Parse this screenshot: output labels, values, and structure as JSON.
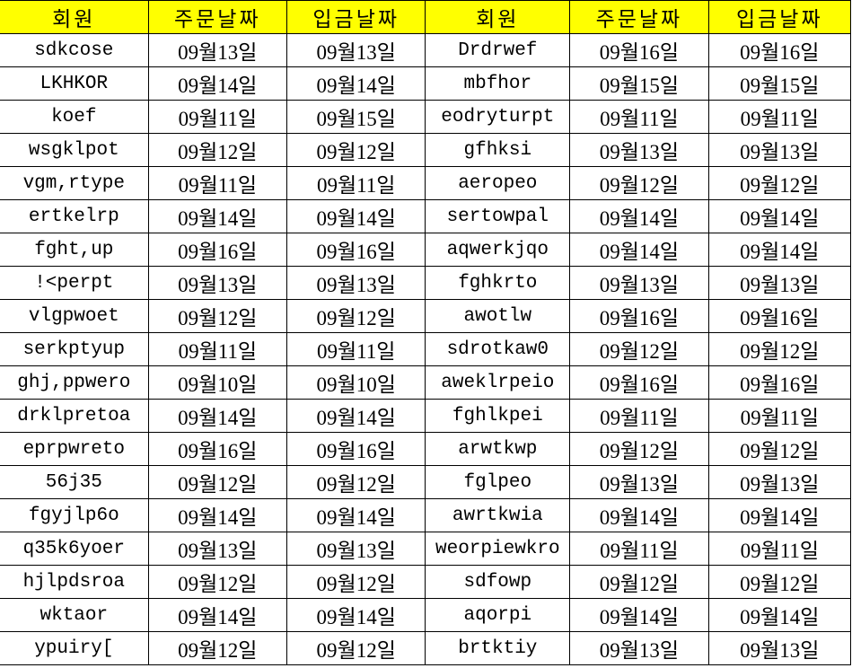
{
  "colors": {
    "header_bg": "#ffff00",
    "grid": "#000000"
  },
  "headers": [
    "회원",
    "주문날짜",
    "입금날짜",
    "회원",
    "주문날짜",
    "입금날짜"
  ],
  "rows": [
    [
      "sdkcose",
      "09월13일",
      "09월13일",
      "Drdrwef",
      "09월16일",
      "09월16일"
    ],
    [
      "LKHKOR",
      "09월14일",
      "09월14일",
      "mbfhor",
      "09월15일",
      "09월15일"
    ],
    [
      "koef",
      "09월11일",
      "09월15일",
      "eodryturpt",
      "09월11일",
      "09월11일"
    ],
    [
      "wsgklpot",
      "09월12일",
      "09월12일",
      "gfhksi",
      "09월13일",
      "09월13일"
    ],
    [
      "vgm,rtype",
      "09월11일",
      "09월11일",
      "aeropeo",
      "09월12일",
      "09월12일"
    ],
    [
      "ertkelrp",
      "09월14일",
      "09월14일",
      "sertowpal",
      "09월14일",
      "09월14일"
    ],
    [
      "fght,up",
      "09월16일",
      "09월16일",
      "aqwerkjqo",
      "09월14일",
      "09월14일"
    ],
    [
      "!<perpt",
      "09월13일",
      "09월13일",
      "fghkrto",
      "09월13일",
      "09월13일"
    ],
    [
      "vlgpwoet",
      "09월12일",
      "09월12일",
      "awotlw",
      "09월16일",
      "09월16일"
    ],
    [
      "serkptyup",
      "09월11일",
      "09월11일",
      "sdrotkaw0",
      "09월12일",
      "09월12일"
    ],
    [
      "ghj,ppwero",
      "09월10일",
      "09월10일",
      "aweklrpeio",
      "09월16일",
      "09월16일"
    ],
    [
      "drklpretoa",
      "09월14일",
      "09월14일",
      "fghlkpei",
      "09월11일",
      "09월11일"
    ],
    [
      "eprpwreto",
      "09월16일",
      "09월16일",
      "arwtkwp",
      "09월12일",
      "09월12일"
    ],
    [
      "56j35",
      "09월12일",
      "09월12일",
      "fglpeo",
      "09월13일",
      "09월13일"
    ],
    [
      "fgyjlp6o",
      "09월14일",
      "09월14일",
      "awrtkwia",
      "09월14일",
      "09월14일"
    ],
    [
      "q35k6yoer",
      "09월13일",
      "09월13일",
      "weorpiewkro",
      "09월11일",
      "09월11일"
    ],
    [
      "hjlpdsroa",
      "09월12일",
      "09월12일",
      "sdfowp",
      "09월12일",
      "09월12일"
    ],
    [
      "wktaor",
      "09월14일",
      "09월14일",
      "aqorpi",
      "09월14일",
      "09월14일"
    ],
    [
      "ypuiry[",
      "09월12일",
      "09월12일",
      "brtktiy",
      "09월13일",
      "09월13일"
    ]
  ]
}
